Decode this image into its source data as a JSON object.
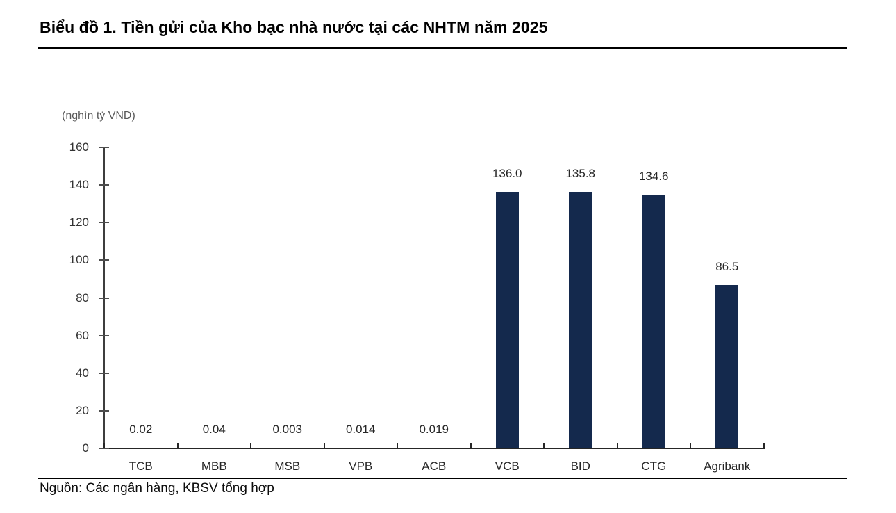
{
  "header": {
    "title": "Biểu đồ 1. Tiền gửi của Kho bạc nhà nước tại các NHTM năm 2025"
  },
  "footer": {
    "source": "Nguồn: Các ngân hàng, KBSV tổng hợp"
  },
  "chart_data": {
    "type": "bar",
    "title": "Biểu đồ 1. Tiền gửi của Kho bạc nhà nước tại các NHTM năm 2025",
    "unit_label": "(nghìn tỷ VND)",
    "categories": [
      "TCB",
      "MBB",
      "MSB",
      "VPB",
      "ACB",
      "VCB",
      "BID",
      "CTG",
      "Agribank"
    ],
    "values": [
      0.02,
      0.04,
      0.003,
      0.014,
      0.019,
      136.0,
      135.8,
      134.6,
      86.5
    ],
    "value_labels": [
      "0.02",
      "0.04",
      "0.003",
      "0.014",
      "0.019",
      "136.0",
      "135.8",
      "134.6",
      "86.5"
    ],
    "xlabel": "",
    "ylabel": "",
    "ylim": [
      0,
      160
    ],
    "yticks": [
      0,
      20,
      40,
      60,
      80,
      100,
      120,
      140,
      160
    ],
    "grid": false,
    "legend": null,
    "bar_color": "#14294D",
    "source": "Nguồn: Các ngân hàng, KBSV tổng hợp"
  },
  "colors": {
    "bar": "#14294D",
    "axis": "#3d3d3d",
    "text": "#262626",
    "unit": "#595959",
    "rule": "#000000"
  }
}
